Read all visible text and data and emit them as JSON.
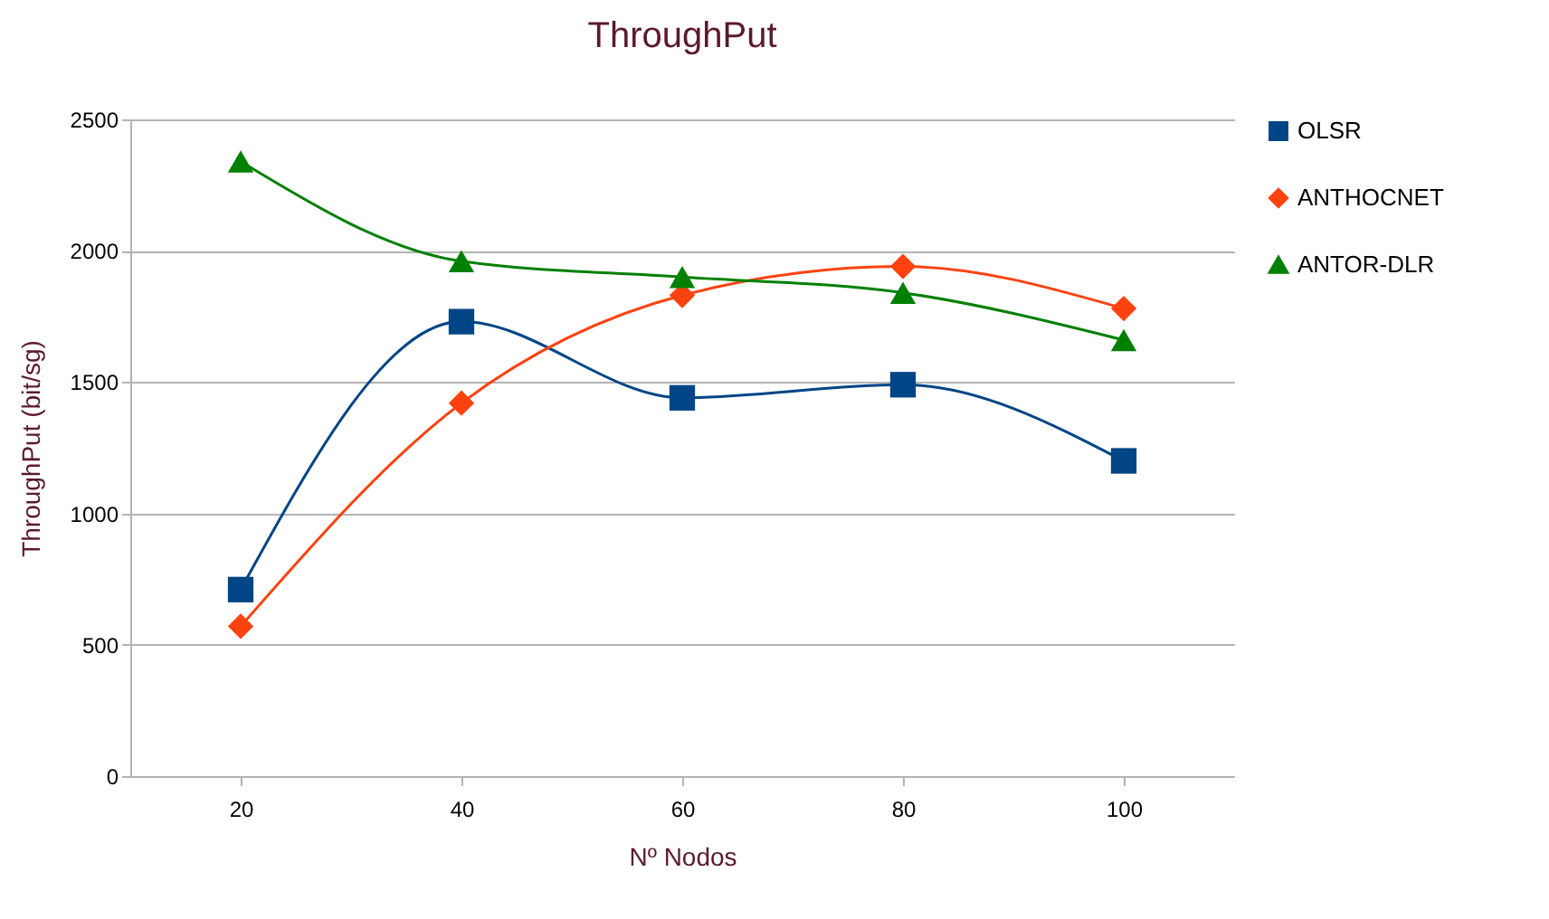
{
  "chart_data": {
    "type": "line",
    "title": "ThroughPut",
    "xlabel": "Nº Nodos",
    "ylabel": "ThroughPut (bit/sg)",
    "categories": [
      "20",
      "40",
      "60",
      "80",
      "100"
    ],
    "series": [
      {
        "name": "OLSR",
        "color": "#004586",
        "marker": "square",
        "values": [
          710,
          1730,
          1440,
          1490,
          1200
        ]
      },
      {
        "name": "ANTHOCNET",
        "color": "#ff420e",
        "marker": "diamond",
        "values": [
          570,
          1420,
          1830,
          1940,
          1780
        ]
      },
      {
        "name": "ANTOR-DLR",
        "color": "#008000",
        "marker": "triangle",
        "values": [
          2340,
          1960,
          1900,
          1840,
          1660
        ]
      }
    ],
    "ylim": [
      0,
      2500
    ],
    "yticks": [
      0,
      500,
      1000,
      1500,
      2000,
      2500
    ],
    "grid": "y",
    "legend": "right"
  }
}
